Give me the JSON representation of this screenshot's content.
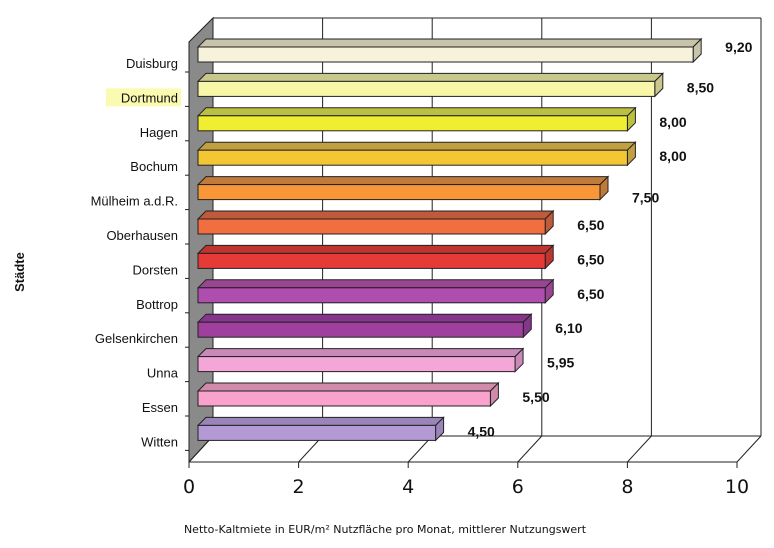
{
  "chart_data": {
    "type": "bar",
    "orientation": "horizontal",
    "style": "3d",
    "title": "",
    "xlabel": "Netto-Kaltmiete in EUR/m² Nutzfläche pro Monat, mittlerer Nutzungswert",
    "ylabel": "Städte",
    "xlim": [
      0,
      10
    ],
    "xticks": [
      "0",
      "2",
      "4",
      "6",
      "8",
      "10"
    ],
    "highlighted_category": "Dortmund",
    "highlight_color": "#fafab0",
    "categories": [
      "Duisburg",
      "Dortmund",
      "Hagen",
      "Bochum",
      "Mülheim a.d.R.",
      "Oberhausen",
      "Dorsten",
      "Bottrop",
      "Gelsenkirchen",
      "Unna",
      "Essen",
      "Witten"
    ],
    "values": [
      9.2,
      8.5,
      8.0,
      8.0,
      7.5,
      6.5,
      6.5,
      6.5,
      6.1,
      5.95,
      5.5,
      4.5
    ],
    "value_labels": [
      "9,20",
      "8,50",
      "8,00",
      "8,00",
      "7,50",
      "6,50",
      "6,50",
      "6,50",
      "6,10",
      "5,95",
      "5,50",
      "4,50"
    ],
    "colors": [
      "#f6f2dc",
      "#f8f6a8",
      "#f0ee30",
      "#f4c634",
      "#f89638",
      "#f06e40",
      "#e63a36",
      "#b04eb0",
      "#a0409e",
      "#f4a6d8",
      "#f8a2cc",
      "#b49ad4"
    ],
    "top_colors": [
      "#c8c4aa",
      "#c8c88e",
      "#bcc040",
      "#c0a040",
      "#c07a3a",
      "#c05a3a",
      "#c03430",
      "#9a4494",
      "#86368a",
      "#c88ab8",
      "#d08aaa",
      "#9a84b8"
    ]
  }
}
